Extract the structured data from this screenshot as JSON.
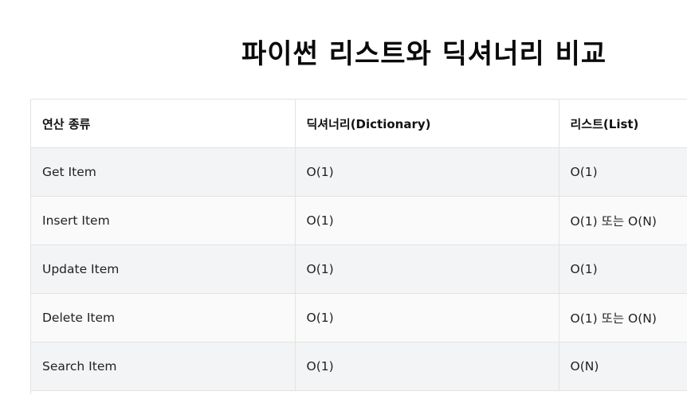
{
  "title": "파이썬 리스트와 딕셔너리 비교",
  "table": {
    "headers": [
      "연산 종류",
      "딕셔너리(Dictionary)",
      "리스트(List)"
    ],
    "rows": [
      [
        "Get Item",
        "O(1)",
        "O(1)"
      ],
      [
        "Insert Item",
        "O(1)",
        "O(1) 또는 O(N)"
      ],
      [
        "Update Item",
        "O(1)",
        "O(1)"
      ],
      [
        "Delete Item",
        "O(1)",
        "O(1) 또는 O(N)"
      ],
      [
        "Search Item",
        "O(1)",
        "O(N)"
      ]
    ]
  }
}
